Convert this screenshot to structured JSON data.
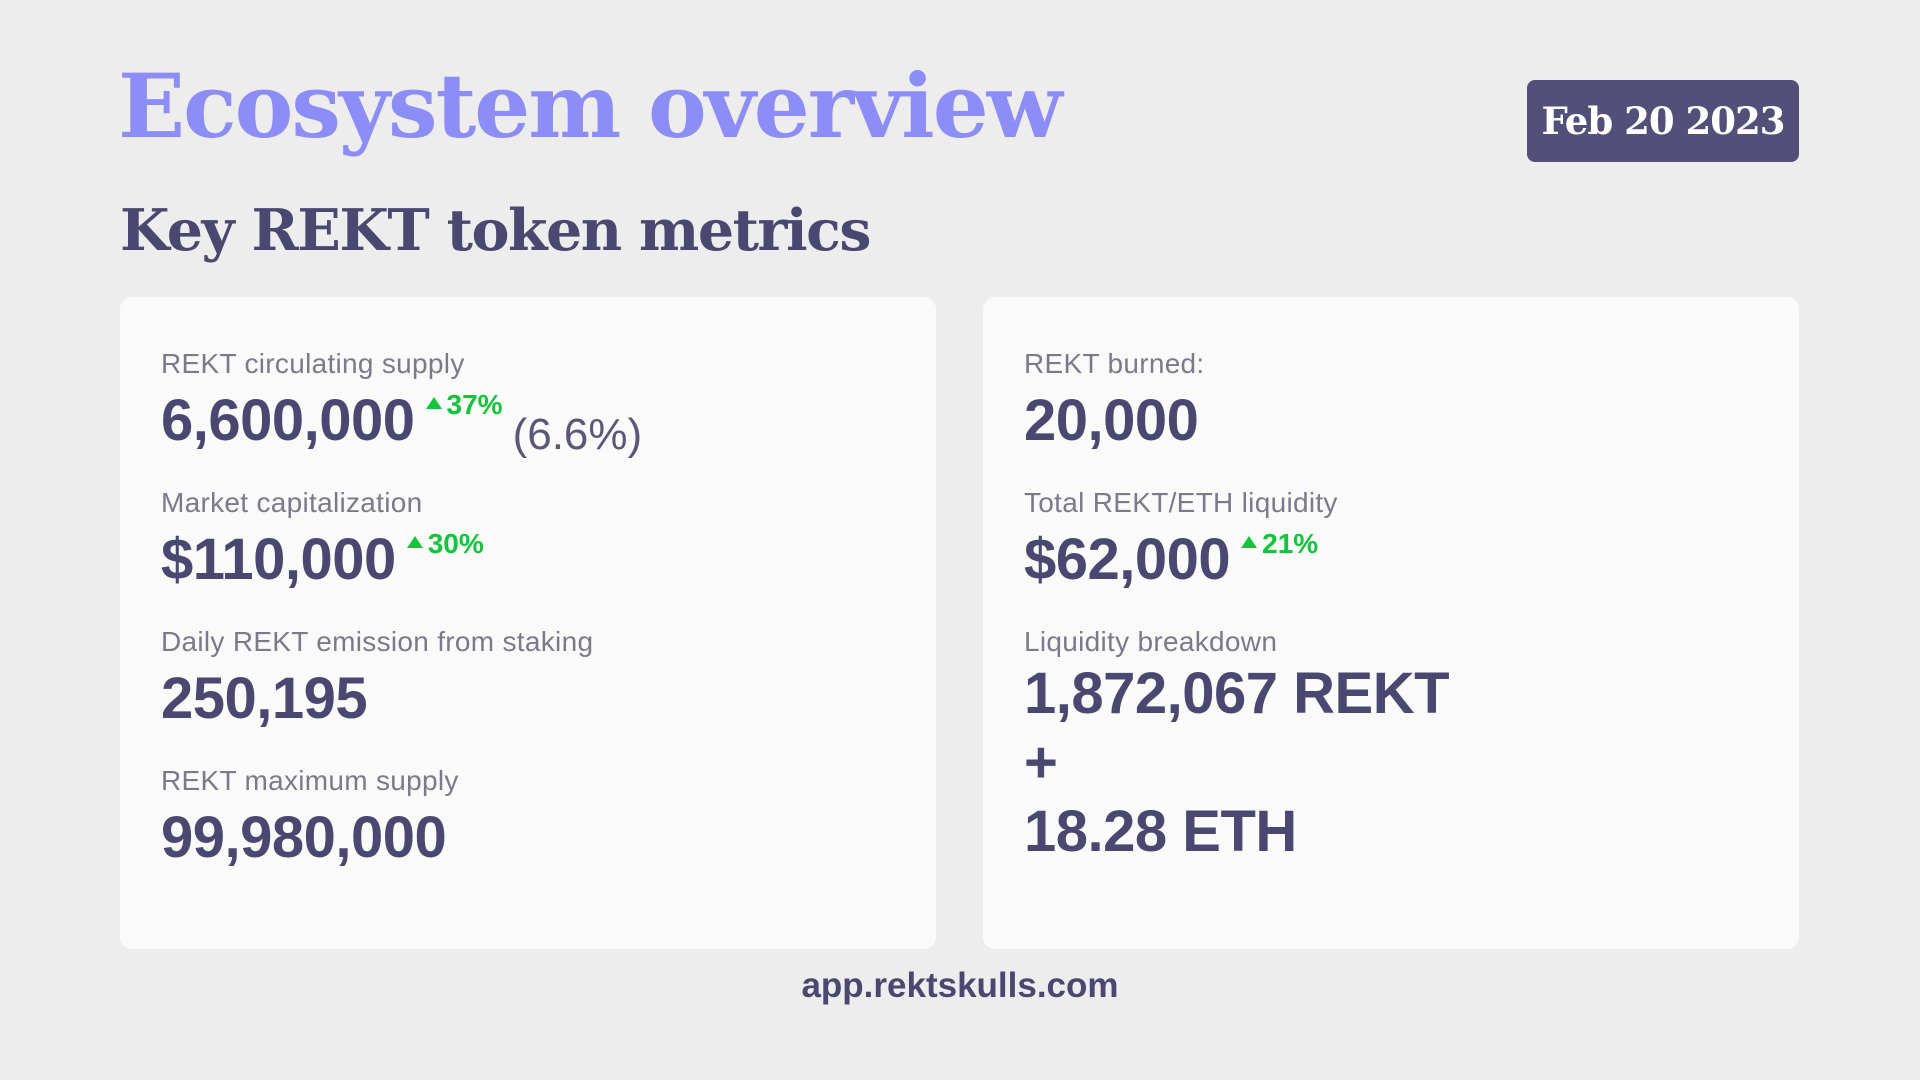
{
  "header": {
    "title": "Ecosystem overview",
    "subtitle": "Key REKT token metrics",
    "date": "Feb 20 2023"
  },
  "left_card": {
    "circulating_supply": {
      "label": "REKT circulating supply",
      "value": "6,600,000",
      "change": "37%",
      "extra": "(6.6%)"
    },
    "market_cap": {
      "label": "Market capitalization",
      "value": "$110,000",
      "change": "30%"
    },
    "daily_emission": {
      "label": "Daily REKT emission from staking",
      "value": "250,195"
    },
    "max_supply": {
      "label": "REKT maximum supply",
      "value": "99,980,000"
    }
  },
  "right_card": {
    "burned": {
      "label": "REKT burned:",
      "value": "20,000"
    },
    "liquidity": {
      "label": "Total REKT/ETH liquidity",
      "value": "$62,000",
      "change": "21%"
    },
    "breakdown": {
      "label": "Liquidity breakdown",
      "rekt": "1,872,067 REKT",
      "plus": "+",
      "eth": "18.28 ETH"
    }
  },
  "footer": {
    "url": "app.rektskulls.com"
  },
  "colors": {
    "title": "#8d8df7",
    "text": "#4a4870",
    "badge_bg": "#524f78",
    "positive": "#14c43a",
    "card_bg": "#fafafa",
    "page_bg": "#ededed"
  },
  "icons": {
    "change_indicator": "triangle-up-icon"
  }
}
